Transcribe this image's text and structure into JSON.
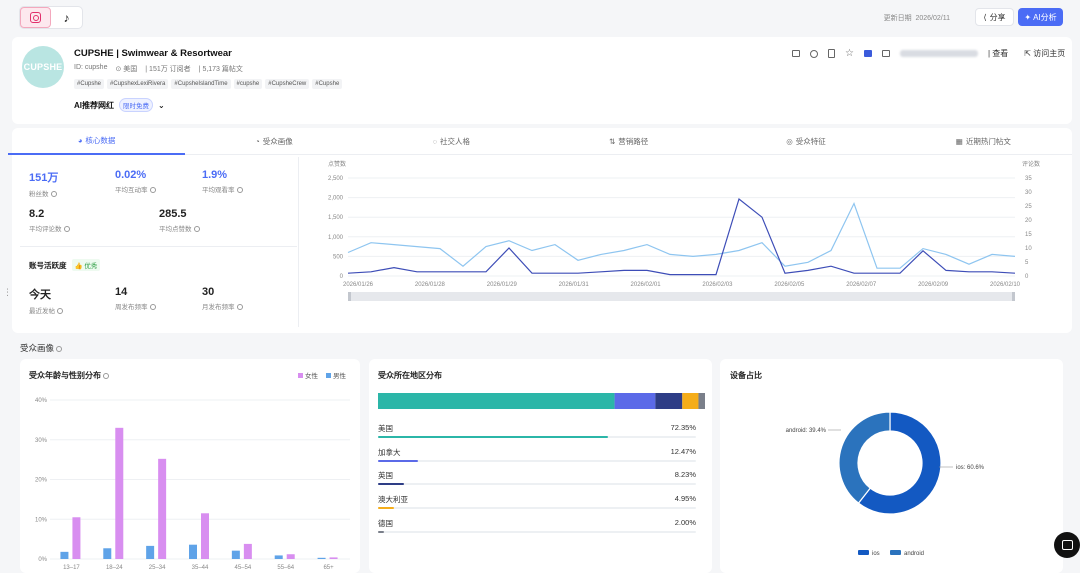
{
  "topbar": {
    "platforms": [
      {
        "name": "instagram-icon",
        "active": true
      },
      {
        "name": "tiktok-icon",
        "active": false
      }
    ],
    "tiktok_glyph": "♪",
    "update_label": "更新日期",
    "update_date": "2026/02/11",
    "share_label": "分享",
    "ai_label": "AI分析"
  },
  "profile": {
    "avatar_text": "CUPSHE",
    "name": "CUPSHE | Swimwear & Resortwear",
    "id": "ID: cupshe",
    "country": "美国",
    "subscribers": "151万 订阅者",
    "posts": "5,173 篇帖文",
    "tags": [
      "#Cupshe",
      "#CupshexLexiRivera",
      "#CupsheIslandTime",
      "#cupshe",
      "#CupsheCrew",
      "#Cupshe"
    ],
    "ai_rec": "AI推荐网红",
    "limited_badge": "限时免费",
    "view_label": "查看",
    "visit_label": "访问主页"
  },
  "tabs": [
    {
      "label": "核心数据",
      "active": true
    },
    {
      "label": "受众画像",
      "active": false
    },
    {
      "label": "社交人格",
      "active": false
    },
    {
      "label": "营销路径",
      "active": false
    },
    {
      "label": "受众特征",
      "active": false
    },
    {
      "label": "近期热门帖文",
      "active": false
    }
  ],
  "stats": {
    "followers": {
      "value": "151万",
      "label": "粉丝数"
    },
    "engagement": {
      "value": "0.02%",
      "label": "平均互动率"
    },
    "view_rate": {
      "value": "1.9%",
      "label": "平均观看率"
    },
    "comments": {
      "value": "8.2",
      "label": "平均评论数"
    },
    "likes": {
      "value": "285.5",
      "label": "平均点赞数"
    }
  },
  "activity": {
    "title": "账号活跃度",
    "badge": "优秀",
    "recent": {
      "value": "今天",
      "label": "最近发帖"
    },
    "weekly": {
      "value": "14",
      "label": "周发布频率"
    },
    "monthly": {
      "value": "30",
      "label": "月发布频率"
    }
  },
  "chart_data": [
    {
      "type": "line",
      "ylabel": "点赞数",
      "y2label": "评论数",
      "ylim": [
        0,
        2500
      ],
      "y2lim": [
        0,
        35
      ],
      "yticks": [
        "2,500",
        "2,000",
        "1,500",
        "1,000",
        "500",
        "0"
      ],
      "y2ticks": [
        "35",
        "30",
        "25",
        "20",
        "15",
        "10",
        "5",
        "0"
      ],
      "xticks": [
        "2026/01/26",
        "2026/01/28",
        "2026/01/29",
        "2026/01/31",
        "2026/02/01",
        "2026/02/03",
        "2026/02/05",
        "2026/02/07",
        "2026/02/09",
        "2026/02/10"
      ],
      "series": [
        {
          "color": "#8ec5f0",
          "axis": "left",
          "values": [
            600,
            850,
            800,
            750,
            700,
            250,
            750,
            900,
            650,
            800,
            400,
            550,
            650,
            800,
            550,
            500,
            550,
            650,
            850,
            250,
            350,
            650,
            1850,
            200,
            200,
            700,
            550,
            300,
            550,
            500
          ]
        },
        {
          "color": "#3d4db7",
          "axis": "right",
          "values": [
            1,
            1.5,
            3,
            1.5,
            1.5,
            1.5,
            1.5,
            10,
            1,
            1,
            1,
            1.5,
            2,
            2,
            0.5,
            0.5,
            0.5,
            27.5,
            21,
            1,
            2,
            3.5,
            1,
            1,
            1,
            9,
            2,
            1.5,
            1.5,
            1
          ]
        }
      ],
      "grid": true
    },
    {
      "type": "bar",
      "title": "受众年龄与性别分布",
      "categories": [
        "13–17",
        "18–24",
        "25–34",
        "35–44",
        "45–54",
        "55–64",
        "65+"
      ],
      "yticks": [
        "40%",
        "30%",
        "20%",
        "10%",
        "0%"
      ],
      "ylim": [
        0,
        40
      ],
      "series": [
        {
          "name": "女性",
          "color": "#d88ef0",
          "values": [
            10.5,
            33,
            25.2,
            11.5,
            3.8,
            1.2,
            0.4
          ]
        },
        {
          "name": "男性",
          "color": "#5fa3e8",
          "values": [
            1.8,
            2.7,
            3.3,
            3.6,
            2.1,
            0.9,
            0.3
          ]
        }
      ],
      "legend": "top-right"
    },
    {
      "type": "pie",
      "title": "设备占比",
      "slices": [
        {
          "name": "ios",
          "value": 60.6,
          "label": "ios: 60.6%",
          "color": "#1359c2"
        },
        {
          "name": "android",
          "value": 39.4,
          "label": "android: 39.4%",
          "color": "#2b73bd"
        }
      ],
      "legend": "bottom"
    }
  ],
  "audience": {
    "section_title": "受众画像",
    "region_title": "受众所在地区分布",
    "region_bar_colors": [
      "#2bb6a8",
      "#5b6ae8",
      "#2e3d86",
      "#f5ad1a",
      "#7a7f8a"
    ],
    "region_bar_values": [
      72.35,
      12.47,
      8.23,
      4.95,
      2.0
    ],
    "regions": [
      {
        "name": "美国",
        "pct": "72.35%",
        "value": 72.35,
        "color": "#2bb6a8"
      },
      {
        "name": "加拿大",
        "pct": "12.47%",
        "value": 12.47,
        "color": "#5b6ae8"
      },
      {
        "name": "英国",
        "pct": "8.23%",
        "value": 8.23,
        "color": "#2e3d86"
      },
      {
        "name": "澳大利亚",
        "pct": "4.95%",
        "value": 4.95,
        "color": "#f5ad1a"
      },
      {
        "name": "德国",
        "pct": "2.00%",
        "value": 2.0,
        "color": "#7a7f8a"
      }
    ]
  }
}
